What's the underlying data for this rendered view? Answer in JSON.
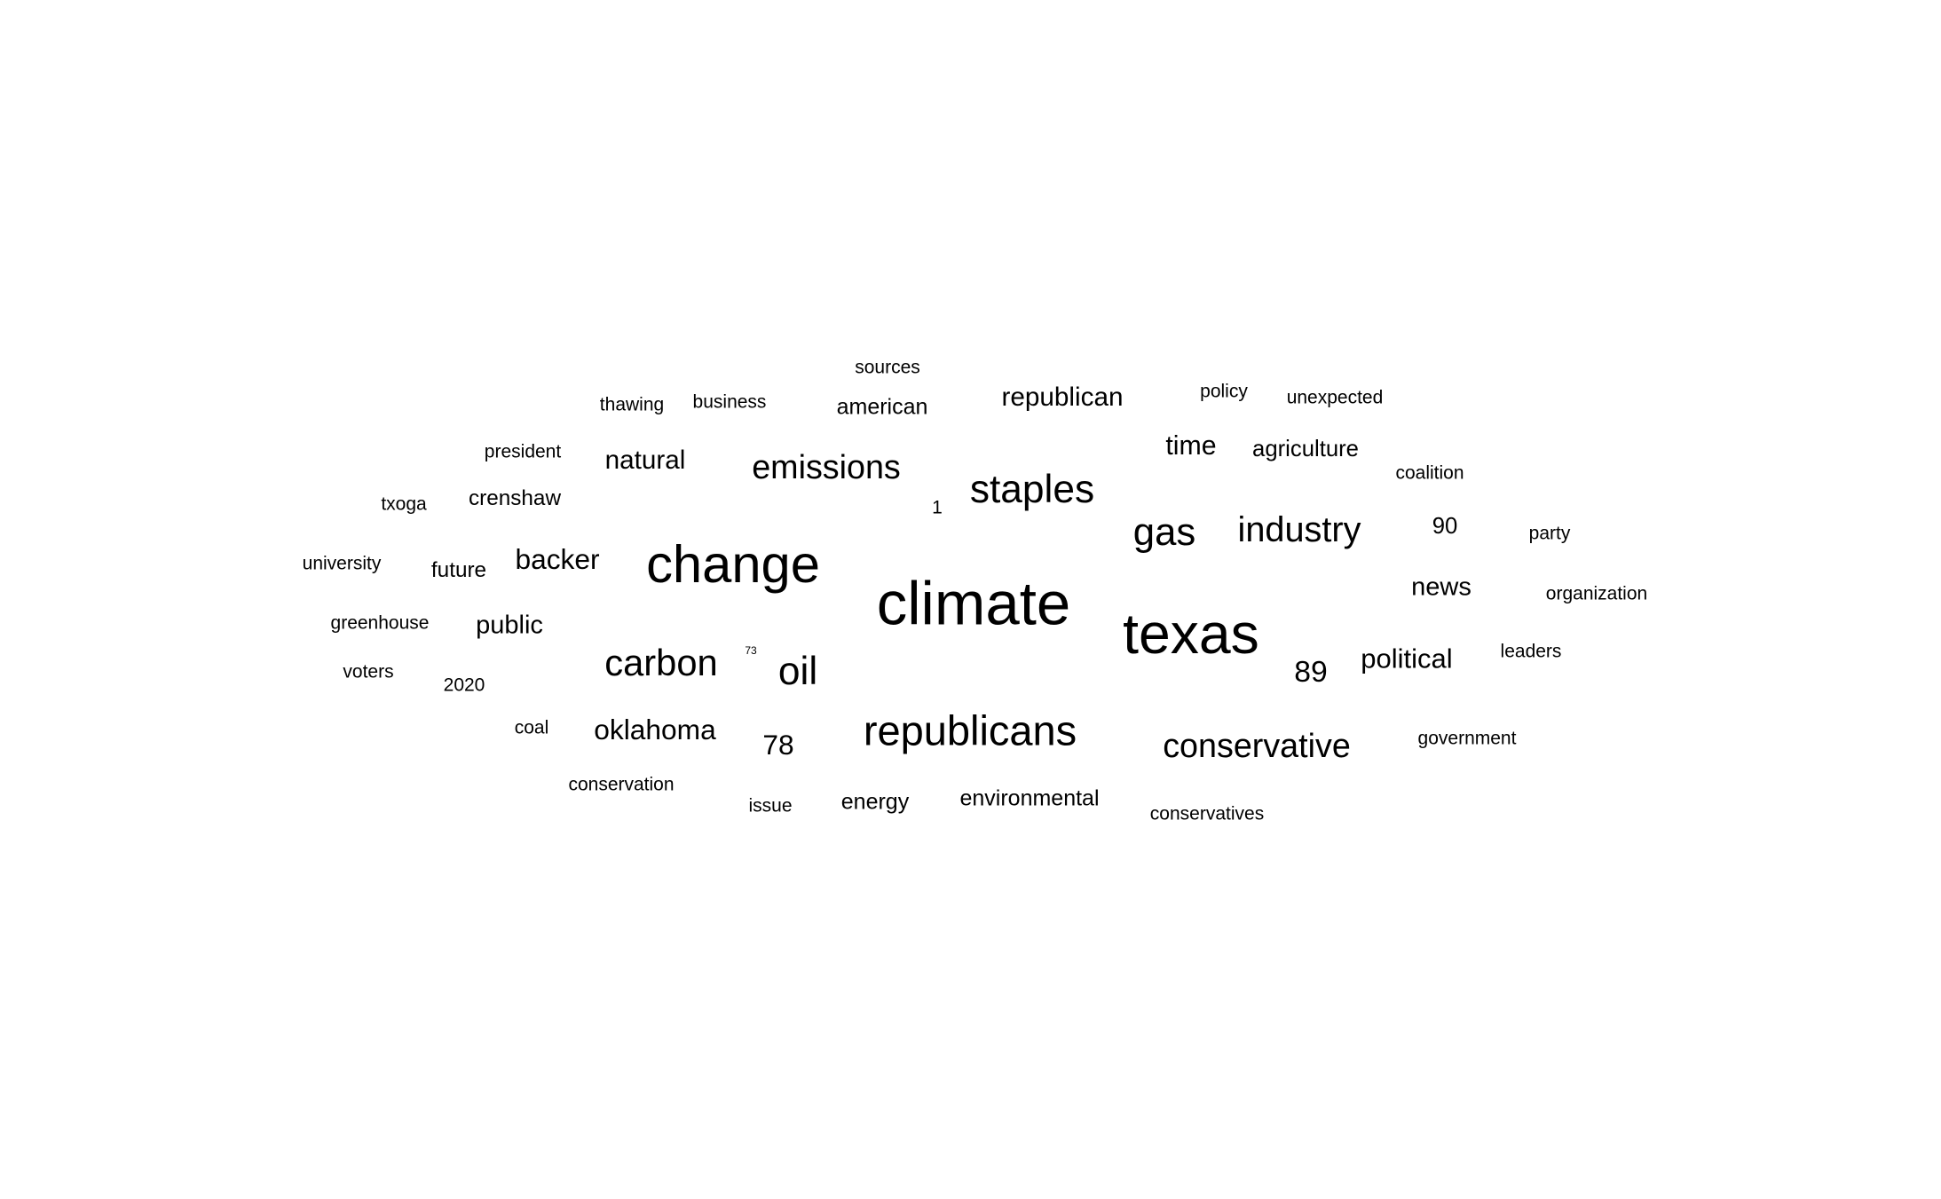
{
  "text_color": "#000000",
  "background_color": "#ffffff",
  "words": [
    {
      "text": "climate",
      "weight": 100
    },
    {
      "text": "texas",
      "weight": 93
    },
    {
      "text": "change",
      "weight": 86
    },
    {
      "text": "republicans",
      "weight": 67
    },
    {
      "text": "oil",
      "weight": 63
    },
    {
      "text": "staples",
      "weight": 63
    },
    {
      "text": "gas",
      "weight": 62
    },
    {
      "text": "carbon",
      "weight": 59
    },
    {
      "text": "industry",
      "weight": 56
    },
    {
      "text": "conservative",
      "weight": 53
    },
    {
      "text": "emissions",
      "weight": 53
    },
    {
      "text": "89",
      "weight": 47
    },
    {
      "text": "78",
      "weight": 44
    },
    {
      "text": "oklahoma",
      "weight": 44
    },
    {
      "text": "backer",
      "weight": 44
    },
    {
      "text": "political",
      "weight": 43
    },
    {
      "text": "time",
      "weight": 42
    },
    {
      "text": "natural",
      "weight": 41
    },
    {
      "text": "republican",
      "weight": 41
    },
    {
      "text": "news",
      "weight": 40
    },
    {
      "text": "public",
      "weight": 40
    },
    {
      "text": "90",
      "weight": 35
    },
    {
      "text": "agriculture",
      "weight": 35
    },
    {
      "text": "environmental",
      "weight": 34
    },
    {
      "text": "energy",
      "weight": 34
    },
    {
      "text": "american",
      "weight": 34
    },
    {
      "text": "crenshaw",
      "weight": 33
    },
    {
      "text": "future",
      "weight": 33
    },
    {
      "text": "organization",
      "weight": 28
    },
    {
      "text": "government",
      "weight": 28
    },
    {
      "text": "conservatives",
      "weight": 28
    },
    {
      "text": "unexpected",
      "weight": 28
    },
    {
      "text": "coalition",
      "weight": 28
    },
    {
      "text": "party",
      "weight": 28
    },
    {
      "text": "leaders",
      "weight": 28
    },
    {
      "text": "conservation",
      "weight": 28
    },
    {
      "text": "issue",
      "weight": 28
    },
    {
      "text": "business",
      "weight": 28
    },
    {
      "text": "thawing",
      "weight": 28
    },
    {
      "text": "sources",
      "weight": 28
    },
    {
      "text": "policy",
      "weight": 28
    },
    {
      "text": "president",
      "weight": 28
    },
    {
      "text": "txoga",
      "weight": 28
    },
    {
      "text": "university",
      "weight": 28
    },
    {
      "text": "greenhouse",
      "weight": 28
    },
    {
      "text": "voters",
      "weight": 28
    },
    {
      "text": "2020",
      "weight": 28
    },
    {
      "text": "coal",
      "weight": 28
    },
    {
      "text": "1",
      "weight": 28
    },
    {
      "text": "73",
      "weight": 12
    }
  ]
}
